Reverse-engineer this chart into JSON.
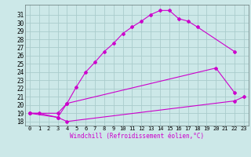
{
  "xlabel": "Windchill (Refroidissement éolien,°C)",
  "bg_color": "#cce8e8",
  "grid_color": "#aacccc",
  "line_color": "#cc00cc",
  "xlim": [
    -0.5,
    23.5
  ],
  "ylim": [
    17.5,
    32.2
  ],
  "xticks": [
    0,
    1,
    2,
    3,
    4,
    5,
    6,
    7,
    8,
    9,
    10,
    11,
    12,
    13,
    14,
    15,
    16,
    17,
    18,
    19,
    20,
    21,
    22,
    23
  ],
  "yticks": [
    18,
    19,
    20,
    21,
    22,
    23,
    24,
    25,
    26,
    27,
    28,
    29,
    30,
    31
  ],
  "curve1_x": [
    0,
    1,
    3,
    4,
    5,
    6,
    7,
    8,
    9,
    10,
    11,
    12,
    13,
    14,
    15,
    16,
    17,
    18,
    22
  ],
  "curve1_y": [
    19,
    19,
    18.5,
    20.2,
    22.2,
    24.0,
    25.2,
    26.5,
    27.5,
    28.7,
    29.5,
    30.2,
    31.0,
    31.5,
    31.5,
    30.5,
    30.2,
    29.5,
    26.5
  ],
  "curve2_x": [
    0,
    3,
    4,
    20,
    22
  ],
  "curve2_y": [
    19,
    19.0,
    20.2,
    24.5,
    21.5
  ],
  "curve3_x": [
    0,
    3,
    4,
    22,
    23
  ],
  "curve3_y": [
    19,
    18.5,
    18.0,
    20.5,
    21.0
  ]
}
